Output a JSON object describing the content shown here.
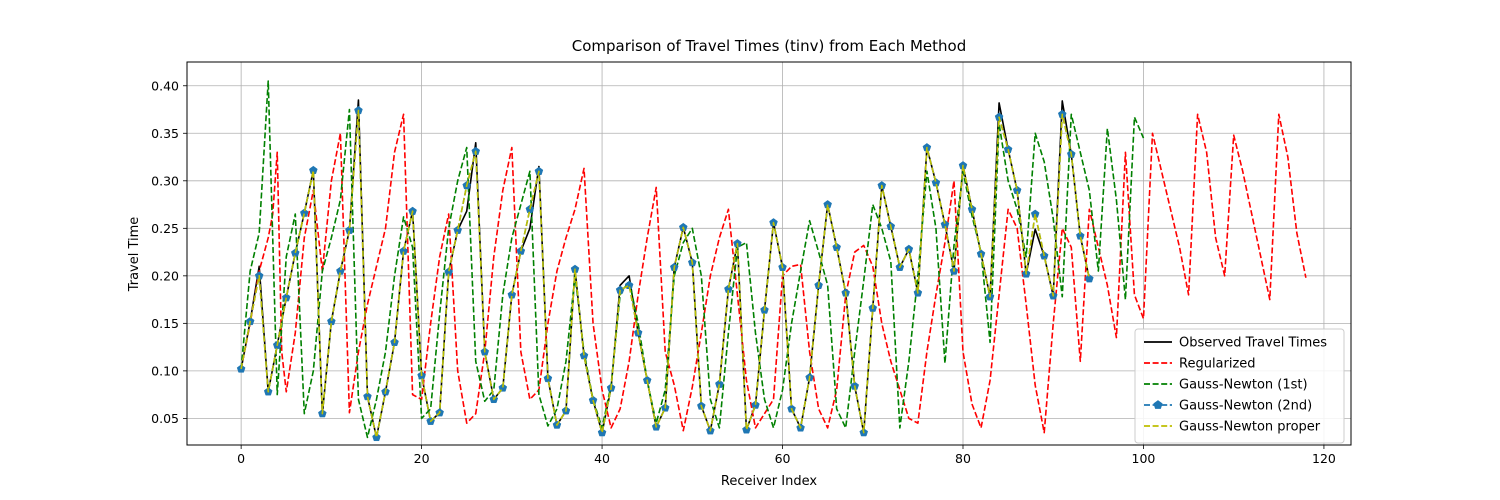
{
  "chart_data": {
    "type": "line",
    "title": "Comparison of Travel Times (tinv) from Each Method",
    "xlabel": "Receiver Index",
    "ylabel": "Travel Time",
    "xlim": [
      -6,
      123
    ],
    "ylim": [
      0.022,
      0.425
    ],
    "xticks": [
      0,
      20,
      40,
      60,
      80,
      100,
      120
    ],
    "yticks": [
      0.05,
      0.1,
      0.15,
      0.2,
      0.25,
      0.3,
      0.35,
      0.4
    ],
    "grid": true,
    "legend_position": "lower-right",
    "series": [
      {
        "name": "Observed Travel Times",
        "color": "#000000",
        "style": "solid",
        "marker": "none",
        "x": [
          0,
          1,
          2,
          3,
          4,
          5,
          6,
          7,
          8,
          9,
          10,
          11,
          12,
          13,
          14,
          15,
          16,
          17,
          18,
          19,
          20,
          21,
          22,
          23,
          24,
          25,
          26,
          27,
          28,
          29,
          30,
          31,
          32,
          33,
          34,
          35,
          36,
          37,
          38,
          39,
          40,
          41,
          42,
          43,
          44,
          45,
          46,
          47,
          48,
          49,
          50,
          51,
          52,
          53,
          54,
          55,
          56,
          57,
          58,
          59,
          60,
          61,
          62,
          63,
          64,
          65,
          66,
          67,
          68,
          69,
          70,
          71,
          72,
          73,
          74,
          75,
          76,
          77,
          78,
          79,
          80,
          81,
          82,
          83,
          84,
          85,
          86,
          87,
          88,
          89,
          90,
          91,
          92,
          93,
          94
        ],
        "y": [
          0.102,
          0.152,
          0.21,
          0.078,
          0.127,
          0.177,
          0.224,
          0.266,
          0.311,
          0.055,
          0.152,
          0.205,
          0.248,
          0.385,
          0.073,
          0.03,
          0.078,
          0.13,
          0.226,
          0.268,
          0.095,
          0.047,
          0.056,
          0.204,
          0.248,
          0.268,
          0.34,
          0.12,
          0.07,
          0.082,
          0.18,
          0.226,
          0.25,
          0.315,
          0.092,
          0.043,
          0.058,
          0.207,
          0.116,
          0.069,
          0.035,
          0.082,
          0.19,
          0.2,
          0.14,
          0.09,
          0.041,
          0.061,
          0.209,
          0.251,
          0.214,
          0.063,
          0.037,
          0.086,
          0.186,
          0.234,
          0.038,
          0.064,
          0.164,
          0.256,
          0.209,
          0.06,
          0.04,
          0.093,
          0.19,
          0.275,
          0.23,
          0.182,
          0.084,
          0.035,
          0.166,
          0.295,
          0.252,
          0.209,
          0.228,
          0.182,
          0.335,
          0.298,
          0.254,
          0.205,
          0.316,
          0.27,
          0.223,
          0.178,
          0.382,
          0.333,
          0.29,
          0.202,
          0.249,
          0.221,
          0.179,
          0.384,
          0.328,
          0.242,
          0.197
        ]
      },
      {
        "name": "Regularized",
        "color": "#ff0000",
        "style": "dashed",
        "marker": "none",
        "x": [
          0,
          1,
          2,
          3,
          3.5,
          4,
          4.5,
          5,
          6,
          7,
          8,
          9,
          10,
          11,
          12,
          13,
          14,
          15,
          16,
          17,
          18,
          19,
          20,
          21,
          22,
          23,
          24,
          25,
          26,
          27,
          28,
          29,
          30,
          31,
          32,
          33,
          34,
          35,
          36,
          37,
          38,
          39,
          40,
          41,
          42,
          43,
          44,
          45,
          46,
          47,
          48,
          49,
          50,
          51,
          52,
          53,
          54,
          55,
          56,
          57,
          58,
          59,
          60,
          61,
          62,
          63,
          64,
          65,
          66,
          67,
          68,
          69,
          70,
          71,
          72,
          73,
          74,
          75,
          76,
          77,
          78,
          79,
          80,
          81,
          82,
          83,
          84,
          85,
          86,
          87,
          88,
          89,
          90,
          91,
          92,
          93,
          94,
          95,
          96,
          97,
          98,
          99,
          100,
          101,
          102,
          103,
          104,
          105,
          106,
          107,
          108,
          109,
          110,
          111,
          112,
          113,
          114,
          115,
          116,
          117,
          118
        ],
        "y": [
          0.102,
          0.15,
          0.205,
          0.24,
          0.265,
          0.33,
          0.12,
          0.078,
          0.14,
          0.24,
          0.29,
          0.205,
          0.3,
          0.35,
          0.056,
          0.12,
          0.17,
          0.21,
          0.25,
          0.33,
          0.37,
          0.075,
          0.07,
          0.15,
          0.22,
          0.265,
          0.1,
          0.045,
          0.055,
          0.12,
          0.22,
          0.29,
          0.335,
          0.12,
          0.07,
          0.08,
          0.15,
          0.205,
          0.24,
          0.27,
          0.313,
          0.15,
          0.08,
          0.04,
          0.06,
          0.11,
          0.18,
          0.24,
          0.293,
          0.12,
          0.085,
          0.037,
          0.083,
          0.14,
          0.2,
          0.24,
          0.27,
          0.18,
          0.09,
          0.04,
          0.055,
          0.07,
          0.2,
          0.21,
          0.212,
          0.12,
          0.06,
          0.04,
          0.08,
          0.18,
          0.225,
          0.232,
          0.21,
          0.15,
          0.11,
          0.08,
          0.05,
          0.045,
          0.12,
          0.18,
          0.235,
          0.3,
          0.12,
          0.065,
          0.04,
          0.09,
          0.18,
          0.27,
          0.25,
          0.17,
          0.085,
          0.035,
          0.15,
          0.25,
          0.23,
          0.11,
          0.27,
          0.23,
          0.19,
          0.135,
          0.33,
          0.18,
          0.155,
          0.35,
          0.31,
          0.27,
          0.23,
          0.18,
          0.37,
          0.33,
          0.24,
          0.2,
          0.348,
          0.31,
          0.265,
          0.22,
          0.175,
          0.37,
          0.325,
          0.245,
          0.198
        ]
      },
      {
        "name": "Gauss-Newton (1st)",
        "color": "#008000",
        "style": "dashed",
        "marker": "none",
        "x": [
          0,
          1,
          2,
          3,
          4,
          5,
          6,
          7,
          8,
          9,
          10,
          11,
          12,
          13,
          14,
          15,
          16,
          17,
          18,
          19,
          20,
          21,
          22,
          23,
          24,
          25,
          26,
          27,
          28,
          29,
          30,
          31,
          32,
          33,
          34,
          35,
          36,
          37,
          38,
          39,
          40,
          41,
          42,
          43,
          44,
          45,
          46,
          47,
          48,
          49,
          50,
          51,
          52,
          53,
          54,
          55,
          56,
          57,
          58,
          59,
          60,
          61,
          62,
          63,
          64,
          65,
          66,
          67,
          68,
          69,
          70,
          71,
          72,
          73,
          74,
          75,
          76,
          77,
          78,
          79,
          80,
          81,
          82,
          83,
          84,
          85,
          86,
          87,
          88,
          89,
          90,
          91,
          92,
          93,
          94,
          95,
          96,
          97,
          98,
          99,
          100
        ],
        "y": [
          0.102,
          0.205,
          0.245,
          0.405,
          0.075,
          0.22,
          0.265,
          0.055,
          0.1,
          0.205,
          0.24,
          0.28,
          0.375,
          0.07,
          0.03,
          0.07,
          0.12,
          0.2,
          0.262,
          0.23,
          0.05,
          0.06,
          0.16,
          0.25,
          0.3,
          0.335,
          0.11,
          0.068,
          0.08,
          0.18,
          0.24,
          0.275,
          0.31,
          0.075,
          0.042,
          0.06,
          0.11,
          0.2,
          0.12,
          0.07,
          0.04,
          0.085,
          0.18,
          0.195,
          0.15,
          0.09,
          0.045,
          0.08,
          0.2,
          0.235,
          0.25,
          0.2,
          0.07,
          0.04,
          0.14,
          0.23,
          0.235,
          0.14,
          0.07,
          0.04,
          0.08,
          0.15,
          0.205,
          0.258,
          0.225,
          0.19,
          0.06,
          0.04,
          0.12,
          0.195,
          0.275,
          0.25,
          0.215,
          0.04,
          0.11,
          0.2,
          0.31,
          0.25,
          0.108,
          0.232,
          0.31,
          0.263,
          0.225,
          0.13,
          0.36,
          0.3,
          0.27,
          0.22,
          0.35,
          0.32,
          0.26,
          0.178,
          0.37,
          0.33,
          0.29,
          0.205,
          0.355,
          0.28,
          0.175,
          0.367,
          0.345
        ]
      },
      {
        "name": "Gauss-Newton (2nd)",
        "color": "#1f77b4",
        "style": "dashed",
        "marker": "pentagon",
        "x": [
          0,
          1,
          2,
          3,
          4,
          5,
          6,
          7,
          8,
          9,
          10,
          11,
          12,
          13,
          14,
          15,
          16,
          17,
          18,
          19,
          20,
          21,
          22,
          23,
          24,
          25,
          26,
          27,
          28,
          29,
          30,
          31,
          32,
          33,
          34,
          35,
          36,
          37,
          38,
          39,
          40,
          41,
          42,
          43,
          44,
          45,
          46,
          47,
          48,
          49,
          50,
          51,
          52,
          53,
          54,
          55,
          56,
          57,
          58,
          59,
          60,
          61,
          62,
          63,
          64,
          65,
          66,
          67,
          68,
          69,
          70,
          71,
          72,
          73,
          74,
          75,
          76,
          77,
          78,
          79,
          80,
          81,
          82,
          83,
          84,
          85,
          86,
          87,
          88,
          89,
          90,
          91,
          92,
          93,
          94
        ],
        "y": [
          0.102,
          0.152,
          0.2,
          0.078,
          0.127,
          0.177,
          0.224,
          0.266,
          0.311,
          0.055,
          0.152,
          0.205,
          0.248,
          0.374,
          0.073,
          0.03,
          0.078,
          0.13,
          0.226,
          0.268,
          0.095,
          0.047,
          0.056,
          0.204,
          0.248,
          0.295,
          0.331,
          0.12,
          0.07,
          0.082,
          0.18,
          0.226,
          0.27,
          0.31,
          0.092,
          0.043,
          0.058,
          0.207,
          0.116,
          0.069,
          0.035,
          0.082,
          0.185,
          0.19,
          0.14,
          0.09,
          0.041,
          0.061,
          0.209,
          0.251,
          0.214,
          0.063,
          0.037,
          0.086,
          0.186,
          0.234,
          0.038,
          0.064,
          0.164,
          0.256,
          0.209,
          0.06,
          0.04,
          0.093,
          0.19,
          0.275,
          0.23,
          0.182,
          0.084,
          0.035,
          0.166,
          0.295,
          0.252,
          0.209,
          0.228,
          0.182,
          0.335,
          0.298,
          0.254,
          0.205,
          0.316,
          0.27,
          0.223,
          0.178,
          0.367,
          0.333,
          0.29,
          0.202,
          0.265,
          0.221,
          0.179,
          0.37,
          0.328,
          0.242,
          0.197
        ]
      },
      {
        "name": "Gauss-Newton proper",
        "color": "#bfbf00",
        "style": "dashed",
        "marker": "none",
        "x": [
          0,
          1,
          2,
          3,
          4,
          5,
          6,
          7,
          8,
          9,
          10,
          11,
          12,
          13,
          14,
          15,
          16,
          17,
          18,
          19,
          20,
          21,
          22,
          23,
          24,
          25,
          26,
          27,
          28,
          29,
          30,
          31,
          32,
          33,
          34,
          35,
          36,
          37,
          38,
          39,
          40,
          41,
          42,
          43,
          44,
          45,
          46,
          47,
          48,
          49,
          50,
          51,
          52,
          53,
          54,
          55,
          56,
          57,
          58,
          59,
          60,
          61,
          62,
          63,
          64,
          65,
          66,
          67,
          68,
          69,
          70,
          71,
          72,
          73,
          74,
          75,
          76,
          77,
          78,
          79,
          80,
          81,
          82,
          83,
          84,
          85,
          86,
          87,
          88,
          89,
          90,
          91,
          92,
          93,
          94
        ],
        "y": [
          0.102,
          0.152,
          0.2,
          0.078,
          0.127,
          0.177,
          0.224,
          0.266,
          0.311,
          0.055,
          0.152,
          0.205,
          0.248,
          0.374,
          0.073,
          0.03,
          0.078,
          0.13,
          0.226,
          0.268,
          0.095,
          0.047,
          0.056,
          0.204,
          0.248,
          0.295,
          0.331,
          0.12,
          0.07,
          0.082,
          0.18,
          0.226,
          0.27,
          0.31,
          0.092,
          0.043,
          0.058,
          0.207,
          0.116,
          0.069,
          0.035,
          0.082,
          0.185,
          0.19,
          0.14,
          0.09,
          0.041,
          0.061,
          0.209,
          0.251,
          0.214,
          0.063,
          0.037,
          0.086,
          0.186,
          0.234,
          0.038,
          0.064,
          0.164,
          0.256,
          0.209,
          0.06,
          0.04,
          0.093,
          0.19,
          0.275,
          0.23,
          0.182,
          0.084,
          0.035,
          0.166,
          0.295,
          0.252,
          0.209,
          0.228,
          0.182,
          0.335,
          0.298,
          0.254,
          0.205,
          0.316,
          0.27,
          0.223,
          0.178,
          0.367,
          0.333,
          0.29,
          0.202,
          0.265,
          0.221,
          0.179,
          0.37,
          0.328,
          0.242,
          0.197
        ]
      }
    ]
  }
}
